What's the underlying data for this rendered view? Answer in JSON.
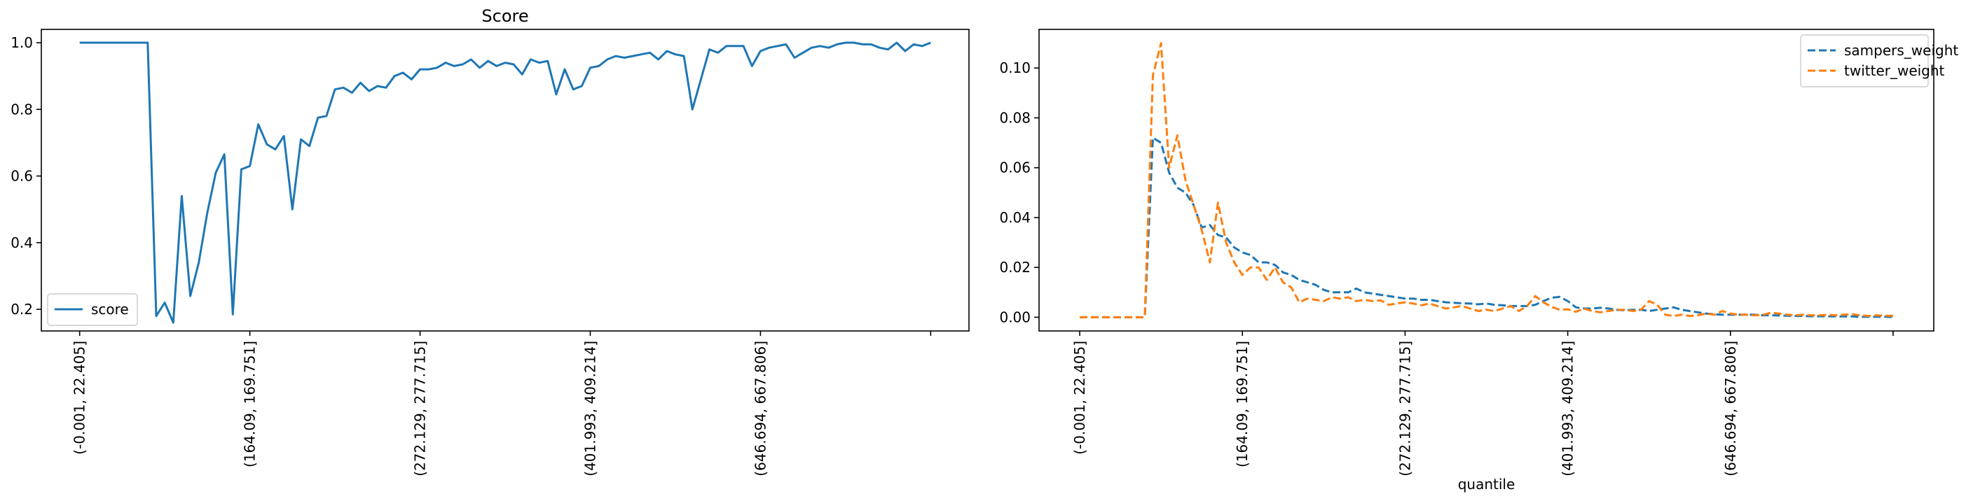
{
  "chart_data": [
    {
      "type": "line",
      "title": "Score",
      "xlabel": "",
      "ylabel": "",
      "ylim": [
        0.135,
        1.04
      ],
      "yticks": [
        0.2,
        0.4,
        0.6,
        0.8,
        1.0
      ],
      "ytick_labels": [
        "0.2",
        "0.4",
        "0.6",
        "0.8",
        "1.0"
      ],
      "x_tick_labels": [
        "(-0.001, 22.405]",
        "(164.09, 169.751]",
        "(272.129, 277.715]",
        "(401.993, 409.214]",
        "(646.694, 667.806]",
        ""
      ],
      "x_tick_positions": [
        0,
        20,
        40,
        60,
        80,
        100
      ],
      "xlim": [
        -4.5,
        104.5
      ],
      "grid": false,
      "legend_position": "lower-left",
      "series": [
        {
          "name": "score",
          "color": "#1f77b4",
          "dashed": false,
          "values": [
            1.0,
            1.0,
            1.0,
            1.0,
            1.0,
            1.0,
            1.0,
            1.0,
            1.0,
            0.18,
            0.22,
            0.16,
            0.54,
            0.24,
            0.34,
            0.49,
            0.61,
            0.665,
            0.185,
            0.62,
            0.63,
            0.755,
            0.695,
            0.68,
            0.72,
            0.5,
            0.71,
            0.69,
            0.775,
            0.78,
            0.86,
            0.865,
            0.85,
            0.88,
            0.855,
            0.87,
            0.865,
            0.9,
            0.91,
            0.89,
            0.92,
            0.92,
            0.925,
            0.94,
            0.93,
            0.935,
            0.95,
            0.925,
            0.945,
            0.93,
            0.94,
            0.935,
            0.905,
            0.95,
            0.94,
            0.945,
            0.845,
            0.92,
            0.86,
            0.87,
            0.925,
            0.93,
            0.95,
            0.96,
            0.955,
            0.96,
            0.965,
            0.97,
            0.95,
            0.975,
            0.965,
            0.96,
            0.8,
            0.89,
            0.98,
            0.97,
            0.99,
            0.99,
            0.99,
            0.93,
            0.975,
            0.985,
            0.99,
            0.995,
            0.955,
            0.97,
            0.985,
            0.99,
            0.985,
            0.995,
            1.0,
            1.0,
            0.995,
            0.995,
            0.985,
            0.98,
            1.0,
            0.975,
            0.995,
            0.99,
            1.0
          ]
        }
      ]
    },
    {
      "type": "line",
      "title": "",
      "xlabel": "quantile",
      "ylabel": "",
      "ylim": [
        -0.0055,
        0.1155
      ],
      "yticks": [
        0.0,
        0.02,
        0.04,
        0.06,
        0.08,
        0.1
      ],
      "ytick_labels": [
        "0.00",
        "0.02",
        "0.04",
        "0.06",
        "0.08",
        "0.10"
      ],
      "x_tick_labels": [
        "(-0.001, 22.405]",
        "(164.09, 169.751]",
        "(272.129, 277.715]",
        "(401.993, 409.214]",
        "(646.694, 667.806]",
        ""
      ],
      "x_tick_positions": [
        0,
        20,
        40,
        60,
        80,
        100
      ],
      "xlim": [
        -5,
        105
      ],
      "grid": false,
      "legend_position": "upper-right",
      "series": [
        {
          "name": "sampers_weight",
          "color": "#1f77b4",
          "dashed": true,
          "values": [
            0,
            0,
            0,
            0,
            0,
            0,
            0,
            0,
            0,
            0.072,
            0.07,
            0.058,
            0.052,
            0.05,
            0.045,
            0.036,
            0.037,
            0.033,
            0.032,
            0.028,
            0.026,
            0.025,
            0.022,
            0.022,
            0.021,
            0.018,
            0.017,
            0.015,
            0.014,
            0.013,
            0.011,
            0.01,
            0.01,
            0.01,
            0.0115,
            0.01,
            0.0095,
            0.009,
            0.0085,
            0.008,
            0.0075,
            0.0075,
            0.007,
            0.007,
            0.0065,
            0.006,
            0.0058,
            0.0056,
            0.0055,
            0.0052,
            0.0055,
            0.005,
            0.0048,
            0.0045,
            0.0045,
            0.0045,
            0.005,
            0.0065,
            0.0078,
            0.0082,
            0.0065,
            0.004,
            0.0035,
            0.0035,
            0.0038,
            0.0035,
            0.003,
            0.0028,
            0.003,
            0.003,
            0.0025,
            0.003,
            0.0035,
            0.004,
            0.003,
            0.0025,
            0.002,
            0.0015,
            0.0012,
            0.001,
            0.001,
            0.001,
            0.001,
            0.001,
            0.0008,
            0.0008,
            0.0007,
            0.0006,
            0.0005,
            0.0005,
            0.0004,
            0.0004,
            0.0004,
            0.0003,
            0.0003,
            0.0003,
            0.0002,
            0.0002,
            0.0002,
            0.0002,
            0.0001
          ]
        },
        {
          "name": "twitter_weight",
          "color": "#ff7f0e",
          "dashed": true,
          "values": [
            0,
            0,
            0,
            0,
            0,
            0,
            0,
            0,
            0,
            0.097,
            0.11,
            0.06,
            0.073,
            0.055,
            0.045,
            0.035,
            0.022,
            0.046,
            0.03,
            0.022,
            0.017,
            0.02,
            0.02,
            0.015,
            0.02,
            0.014,
            0.012,
            0.006,
            0.0075,
            0.007,
            0.0065,
            0.008,
            0.0075,
            0.008,
            0.0065,
            0.007,
            0.0065,
            0.0068,
            0.005,
            0.0055,
            0.006,
            0.0055,
            0.0048,
            0.0055,
            0.0045,
            0.0035,
            0.004,
            0.0045,
            0.0035,
            0.0025,
            0.003,
            0.0025,
            0.0035,
            0.0045,
            0.0025,
            0.0045,
            0.0085,
            0.006,
            0.0042,
            0.003,
            0.0032,
            0.0022,
            0.0035,
            0.0025,
            0.002,
            0.0025,
            0.003,
            0.003,
            0.0025,
            0.003,
            0.0065,
            0.005,
            0.001,
            0.0005,
            0.001,
            0.0005,
            0.0008,
            0.0015,
            0.001,
            0.0025,
            0.0015,
            0.001,
            0.001,
            0.0008,
            0.001,
            0.0018,
            0.0015,
            0.001,
            0.0008,
            0.001,
            0.0008,
            0.0008,
            0.001,
            0.0008,
            0.001,
            0.0012,
            0.0008,
            0.0005,
            0.0008,
            0.0006,
            0.0006
          ]
        }
      ]
    }
  ]
}
